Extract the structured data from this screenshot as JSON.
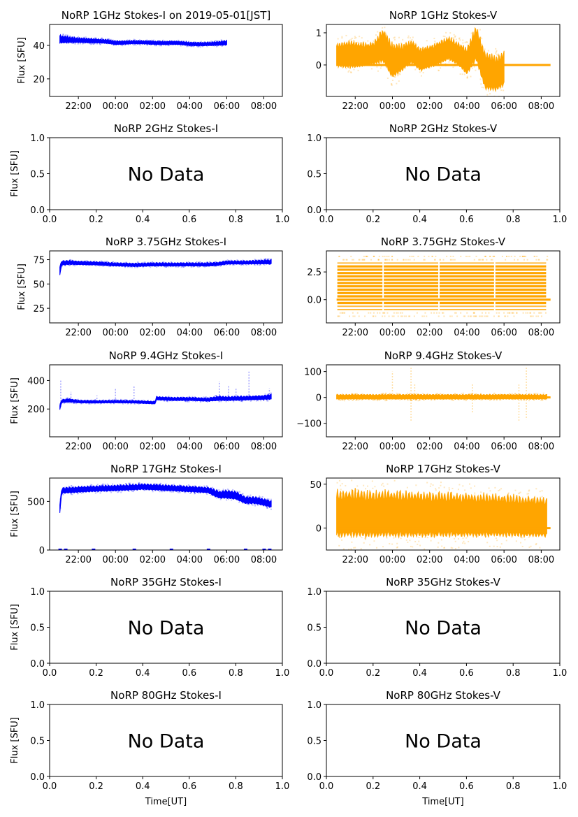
{
  "figure": {
    "xlabel": "Time[UT]",
    "ylabel": "Flux [SFU]",
    "no_data_label": "No Data"
  },
  "chart_data": [
    {
      "id": "1ghz-i",
      "type": "scatter",
      "has_data": true,
      "stokes": "I",
      "title": "NoRP 1GHz Stokes-I on 2019-05-01[JST]",
      "ylabel": "Flux [SFU]",
      "xlabel": "",
      "color": "#0000ff",
      "x_unit": "hours after 20:00 UT",
      "xlim": [
        0.45,
        13.0
      ],
      "ylim": [
        9.5,
        52.5
      ],
      "xticks": [
        2,
        4,
        6,
        8,
        10,
        12
      ],
      "xticklabels": [
        "22:00",
        "00:00",
        "02:00",
        "04:00",
        "06:00",
        "08:00"
      ],
      "yticks": [
        20,
        40
      ],
      "yticklabels": [
        "20",
        "40"
      ],
      "x": [
        1.0,
        1.5,
        2.0,
        2.5,
        3.0,
        3.5,
        4.0,
        4.5,
        5.0,
        5.5,
        6.0,
        6.5,
        7.0,
        7.5,
        8.0,
        8.5,
        9.0,
        9.5,
        10.0
      ],
      "y": [
        43.5,
        43.3,
        43.0,
        42.8,
        42.6,
        42.3,
        41.5,
        41.6,
        41.9,
        41.8,
        41.5,
        41.4,
        41.5,
        41.4,
        40.8,
        40.7,
        40.8,
        41.1,
        41.5
      ],
      "band": [
        2.0,
        1.5,
        1.2,
        1.2,
        1.1,
        1.0,
        1.0,
        0.9,
        0.9,
        0.9,
        0.9,
        0.9,
        0.9,
        0.9,
        0.9,
        0.9,
        0.9,
        1.0,
        1.2
      ],
      "hline": null
    },
    {
      "id": "1ghz-v",
      "type": "scatter",
      "has_data": true,
      "stokes": "V",
      "title": "NoRP 1GHz Stokes-V",
      "ylabel": "",
      "xlabel": "",
      "color": "#ffa500",
      "x_unit": "hours after 20:00 UT",
      "xlim": [
        0.45,
        13.0
      ],
      "ylim": [
        -0.98,
        1.26
      ],
      "xticks": [
        2,
        4,
        6,
        8,
        10,
        12
      ],
      "xticklabels": [
        "22:00",
        "00:00",
        "02:00",
        "04:00",
        "06:00",
        "08:00"
      ],
      "yticks": [
        0,
        1
      ],
      "yticklabels": [
        "0",
        "1"
      ],
      "x": [
        1.0,
        1.5,
        2.0,
        2.5,
        3.0,
        3.5,
        4.0,
        4.5,
        5.0,
        5.5,
        6.0,
        6.5,
        7.0,
        7.5,
        8.0,
        8.5,
        9.0,
        9.5,
        10.0
      ],
      "y": [
        0.3,
        0.3,
        0.3,
        0.3,
        0.35,
        0.6,
        0.1,
        0.2,
        0.4,
        0.15,
        0.25,
        0.35,
        0.5,
        0.35,
        0.1,
        0.65,
        -0.2,
        -0.3,
        -0.15
      ],
      "band": [
        0.3,
        0.35,
        0.35,
        0.3,
        0.3,
        0.45,
        0.45,
        0.35,
        0.3,
        0.3,
        0.3,
        0.3,
        0.3,
        0.3,
        0.35,
        0.45,
        0.5,
        0.45,
        0.45
      ],
      "hline": {
        "value": 0,
        "x": [
          1.0,
          12.5
        ]
      }
    },
    {
      "id": "2ghz-i",
      "type": "scatter",
      "has_data": false,
      "stokes": "I",
      "title": "NoRP 2GHz Stokes-I",
      "ylabel": "Flux [SFU]",
      "xlabel": "",
      "xlim": [
        0,
        1
      ],
      "ylim": [
        0,
        1
      ],
      "xticks": [
        0,
        0.2,
        0.4,
        0.6,
        0.8,
        1.0
      ],
      "xticklabels": [
        "0.0",
        "0.2",
        "0.4",
        "0.6",
        "0.8",
        "1.0"
      ],
      "yticks": [
        0,
        0.5,
        1.0
      ],
      "yticklabels": [
        "0.0",
        "0.5",
        "1.0"
      ]
    },
    {
      "id": "2ghz-v",
      "type": "scatter",
      "has_data": false,
      "stokes": "V",
      "title": "NoRP 2GHz Stokes-V",
      "ylabel": "",
      "xlabel": "",
      "xlim": [
        0,
        1
      ],
      "ylim": [
        0,
        1
      ],
      "xticks": [
        0,
        0.2,
        0.4,
        0.6,
        0.8,
        1.0
      ],
      "xticklabels": [
        "0.0",
        "0.2",
        "0.4",
        "0.6",
        "0.8",
        "1.0"
      ],
      "yticks": [
        0,
        0.5,
        1.0
      ],
      "yticklabels": [
        "0.0",
        "0.5",
        "1.0"
      ]
    },
    {
      "id": "3.75ghz-i",
      "type": "scatter",
      "has_data": true,
      "stokes": "I",
      "title": "NoRP 3.75GHz Stokes-I",
      "ylabel": "Flux [SFU]",
      "xlabel": "",
      "color": "#0000ff",
      "x_unit": "hours after 20:00 UT",
      "xlim": [
        0.45,
        13.0
      ],
      "ylim": [
        10,
        84
      ],
      "xticks": [
        2,
        4,
        6,
        8,
        10,
        12
      ],
      "xticklabels": [
        "22:00",
        "00:00",
        "02:00",
        "04:00",
        "06:00",
        "08:00"
      ],
      "yticks": [
        25,
        50,
        75
      ],
      "yticklabels": [
        "25",
        "50",
        "75"
      ],
      "x": [
        1.0,
        1.1,
        1.5,
        2.0,
        3.0,
        4.0,
        5.0,
        6.0,
        7.0,
        8.0,
        9.0,
        9.5,
        10.0,
        11.0,
        12.0,
        12.4
      ],
      "y": [
        63,
        71.5,
        72,
        71.5,
        71,
        70,
        69.5,
        70,
        70,
        70,
        70,
        70.5,
        72,
        72,
        72.5,
        72.5
      ],
      "band": [
        4,
        2.0,
        1.8,
        1.6,
        1.5,
        1.5,
        1.5,
        1.5,
        1.5,
        1.5,
        1.5,
        1.5,
        1.5,
        1.5,
        1.8,
        2.0
      ],
      "hline": null
    },
    {
      "id": "3.75ghz-v",
      "type": "scatter",
      "has_data": true,
      "stokes": "V",
      "title": "NoRP 3.75GHz Stokes-V",
      "ylabel": "",
      "xlabel": "",
      "color": "#ffa500",
      "x_unit": "hours after 20:00 UT",
      "xlim": [
        0.45,
        13.0
      ],
      "ylim": [
        -2.1,
        4.4
      ],
      "xticks": [
        2,
        4,
        6,
        8,
        10,
        12
      ],
      "xticklabels": [
        "22:00",
        "00:00",
        "02:00",
        "04:00",
        "06:00",
        "08:00"
      ],
      "yticks": [
        0.0,
        2.5
      ],
      "yticklabels": [
        "0.0",
        "2.5"
      ],
      "levels": [
        -0.9,
        -0.6,
        -0.3,
        0.3,
        0.6,
        0.9,
        1.2,
        1.5,
        1.8,
        2.1,
        2.4,
        2.7,
        3.0,
        3.3
      ],
      "sparse_levels": [
        -1.5,
        -1.2,
        3.6,
        3.9
      ],
      "x_range": [
        1.0,
        12.3
      ],
      "gaps": [
        3.5,
        6.5,
        9.5
      ],
      "hline": {
        "value": 0,
        "x": [
          1.0,
          12.5
        ]
      }
    },
    {
      "id": "9.4ghz-i",
      "type": "scatter",
      "has_data": true,
      "stokes": "I",
      "title": "NoRP 9.4GHz Stokes-I",
      "ylabel": "Flux [SFU]",
      "xlabel": "",
      "color": "#0000ff",
      "x_unit": "hours after 20:00 UT",
      "xlim": [
        0.45,
        13.0
      ],
      "ylim": [
        5,
        510
      ],
      "xticks": [
        2,
        4,
        6,
        8,
        10,
        12
      ],
      "xticklabels": [
        "22:00",
        "00:00",
        "02:00",
        "04:00",
        "06:00",
        "08:00"
      ],
      "yticks": [
        200,
        400
      ],
      "yticklabels": [
        "200",
        "400"
      ],
      "x": [
        1.0,
        1.1,
        1.5,
        2.0,
        3.0,
        4.0,
        5.0,
        6.0,
        6.15,
        6.2,
        7.0,
        8.0,
        9.0,
        9.6,
        10.0,
        11.0,
        12.0,
        12.4
      ],
      "y": [
        210,
        255,
        260,
        252,
        250,
        252,
        250,
        245,
        245,
        275,
        270,
        270,
        265,
        275,
        272,
        275,
        280,
        285
      ],
      "band": [
        14,
        10,
        10,
        8,
        8,
        8,
        8,
        8,
        8,
        10,
        10,
        10,
        10,
        14,
        12,
        12,
        12,
        16
      ],
      "spikes": [
        {
          "x": 1.05,
          "y": 400
        },
        {
          "x": 1.6,
          "y": 320
        },
        {
          "x": 3.0,
          "y": 295
        },
        {
          "x": 4.0,
          "y": 345
        },
        {
          "x": 5.0,
          "y": 365
        },
        {
          "x": 9.6,
          "y": 395
        },
        {
          "x": 10.1,
          "y": 370
        },
        {
          "x": 10.5,
          "y": 350
        },
        {
          "x": 11.2,
          "y": 465
        },
        {
          "x": 12.3,
          "y": 345
        }
      ],
      "hline": null
    },
    {
      "id": "9.4ghz-v",
      "type": "scatter",
      "has_data": true,
      "stokes": "V",
      "title": "NoRP 9.4GHz Stokes-V",
      "ylabel": "",
      "xlabel": "",
      "color": "#ffa500",
      "x_unit": "hours after 20:00 UT",
      "xlim": [
        0.45,
        13.0
      ],
      "ylim": [
        -152,
        126
      ],
      "xticks": [
        2,
        4,
        6,
        8,
        10,
        12
      ],
      "xticklabels": [
        "22:00",
        "00:00",
        "02:00",
        "04:00",
        "06:00",
        "08:00"
      ],
      "yticks": [
        -100,
        0,
        100
      ],
      "yticklabels": [
        "−100",
        "0",
        "100"
      ],
      "x": [
        1.0,
        12.3
      ],
      "y": [
        2,
        2
      ],
      "band": [
        8,
        8
      ],
      "spikes": [
        {
          "x": 4.0,
          "y": 100
        },
        {
          "x": 5.0,
          "y": 115
        },
        {
          "x": 5.0,
          "y": -90
        },
        {
          "x": 5.2,
          "y": 55
        },
        {
          "x": 8.3,
          "y": 55
        },
        {
          "x": 8.3,
          "y": -60
        },
        {
          "x": 10.8,
          "y": 50
        },
        {
          "x": 10.8,
          "y": -95
        },
        {
          "x": 11.2,
          "y": 120
        },
        {
          "x": 11.2,
          "y": -85
        }
      ],
      "hline": {
        "value": 0,
        "x": [
          1.0,
          12.5
        ]
      }
    },
    {
      "id": "17ghz-i",
      "type": "scatter",
      "has_data": true,
      "stokes": "I",
      "title": "NoRP 17GHz Stokes-I",
      "ylabel": "Flux [SFU]",
      "xlabel": "",
      "color": "#0000ff",
      "x_unit": "hours after 20:00 UT",
      "xlim": [
        0.45,
        13.0
      ],
      "ylim": [
        0,
        740
      ],
      "xticks": [
        2,
        4,
        6,
        8,
        10,
        12
      ],
      "xticklabels": [
        "22:00",
        "00:00",
        "02:00",
        "04:00",
        "06:00",
        "08:00"
      ],
      "yticks": [
        0,
        500
      ],
      "yticklabels": [
        "0",
        "500"
      ],
      "x": [
        1.0,
        1.1,
        1.5,
        2.0,
        3.0,
        4.0,
        5.0,
        5.5,
        6.0,
        7.0,
        8.0,
        9.0,
        9.3,
        9.6,
        10.0,
        10.5,
        11.0,
        11.5,
        12.0,
        12.4
      ],
      "y": [
        420,
        610,
        615,
        620,
        630,
        635,
        645,
        650,
        645,
        635,
        625,
        615,
        590,
        565,
        570,
        560,
        510,
        510,
        490,
        470
      ],
      "band": [
        40,
        25,
        25,
        25,
        25,
        25,
        25,
        25,
        25,
        25,
        25,
        25,
        30,
        30,
        35,
        35,
        30,
        30,
        30,
        30
      ],
      "zero_points": [
        1.0,
        1.3,
        2.8,
        5.0,
        7.0,
        9.0,
        11.0,
        12.0,
        12.3
      ],
      "hline": null
    },
    {
      "id": "17ghz-v",
      "type": "scatter",
      "has_data": true,
      "stokes": "V",
      "title": "NoRP 17GHz Stokes-V",
      "ylabel": "",
      "xlabel": "",
      "color": "#ffa500",
      "x_unit": "hours after 20:00 UT",
      "xlim": [
        0.45,
        13.0
      ],
      "ylim": [
        -25,
        57
      ],
      "xticks": [
        2,
        4,
        6,
        8,
        10,
        12
      ],
      "xticklabels": [
        "22:00",
        "00:00",
        "02:00",
        "04:00",
        "06:00",
        "08:00"
      ],
      "yticks": [
        0,
        50
      ],
      "yticklabels": [
        "0",
        "50"
      ],
      "x": [
        1.0,
        4.0,
        7.0,
        10.0,
        12.3
      ],
      "y": [
        15,
        15,
        14,
        13,
        11
      ],
      "band": [
        22,
        22,
        21,
        20,
        19
      ],
      "hline": {
        "value": 0,
        "x": [
          1.0,
          12.5
        ]
      }
    },
    {
      "id": "35ghz-i",
      "type": "scatter",
      "has_data": false,
      "stokes": "I",
      "title": "NoRP 35GHz Stokes-I",
      "ylabel": "Flux [SFU]",
      "xlabel": "",
      "xlim": [
        0,
        1
      ],
      "ylim": [
        0,
        1
      ],
      "xticks": [
        0,
        0.2,
        0.4,
        0.6,
        0.8,
        1.0
      ],
      "xticklabels": [
        "0.0",
        "0.2",
        "0.4",
        "0.6",
        "0.8",
        "1.0"
      ],
      "yticks": [
        0,
        0.5,
        1.0
      ],
      "yticklabels": [
        "0.0",
        "0.5",
        "1.0"
      ]
    },
    {
      "id": "35ghz-v",
      "type": "scatter",
      "has_data": false,
      "stokes": "V",
      "title": "NoRP 35GHz Stokes-V",
      "ylabel": "",
      "xlabel": "",
      "xlim": [
        0,
        1
      ],
      "ylim": [
        0,
        1
      ],
      "xticks": [
        0,
        0.2,
        0.4,
        0.6,
        0.8,
        1.0
      ],
      "xticklabels": [
        "0.0",
        "0.2",
        "0.4",
        "0.6",
        "0.8",
        "1.0"
      ],
      "yticks": [
        0,
        0.5,
        1.0
      ],
      "yticklabels": [
        "0.0",
        "0.5",
        "1.0"
      ]
    },
    {
      "id": "80ghz-i",
      "type": "scatter",
      "has_data": false,
      "stokes": "I",
      "title": "NoRP 80GHz Stokes-I",
      "ylabel": "Flux [SFU]",
      "xlabel": "Time[UT]",
      "xlim": [
        0,
        1
      ],
      "ylim": [
        0,
        1
      ],
      "xticks": [
        0,
        0.2,
        0.4,
        0.6,
        0.8,
        1.0
      ],
      "xticklabels": [
        "0.0",
        "0.2",
        "0.4",
        "0.6",
        "0.8",
        "1.0"
      ],
      "yticks": [
        0,
        0.5,
        1.0
      ],
      "yticklabels": [
        "0.0",
        "0.5",
        "1.0"
      ]
    },
    {
      "id": "80ghz-v",
      "type": "scatter",
      "has_data": false,
      "stokes": "V",
      "title": "NoRP 80GHz Stokes-V",
      "ylabel": "",
      "xlabel": "Time[UT]",
      "xlim": [
        0,
        1
      ],
      "ylim": [
        0,
        1
      ],
      "xticks": [
        0,
        0.2,
        0.4,
        0.6,
        0.8,
        1.0
      ],
      "xticklabels": [
        "0.0",
        "0.2",
        "0.4",
        "0.6",
        "0.8",
        "1.0"
      ],
      "yticks": [
        0,
        0.5,
        1.0
      ],
      "yticklabels": [
        "0.0",
        "0.5",
        "1.0"
      ]
    }
  ]
}
